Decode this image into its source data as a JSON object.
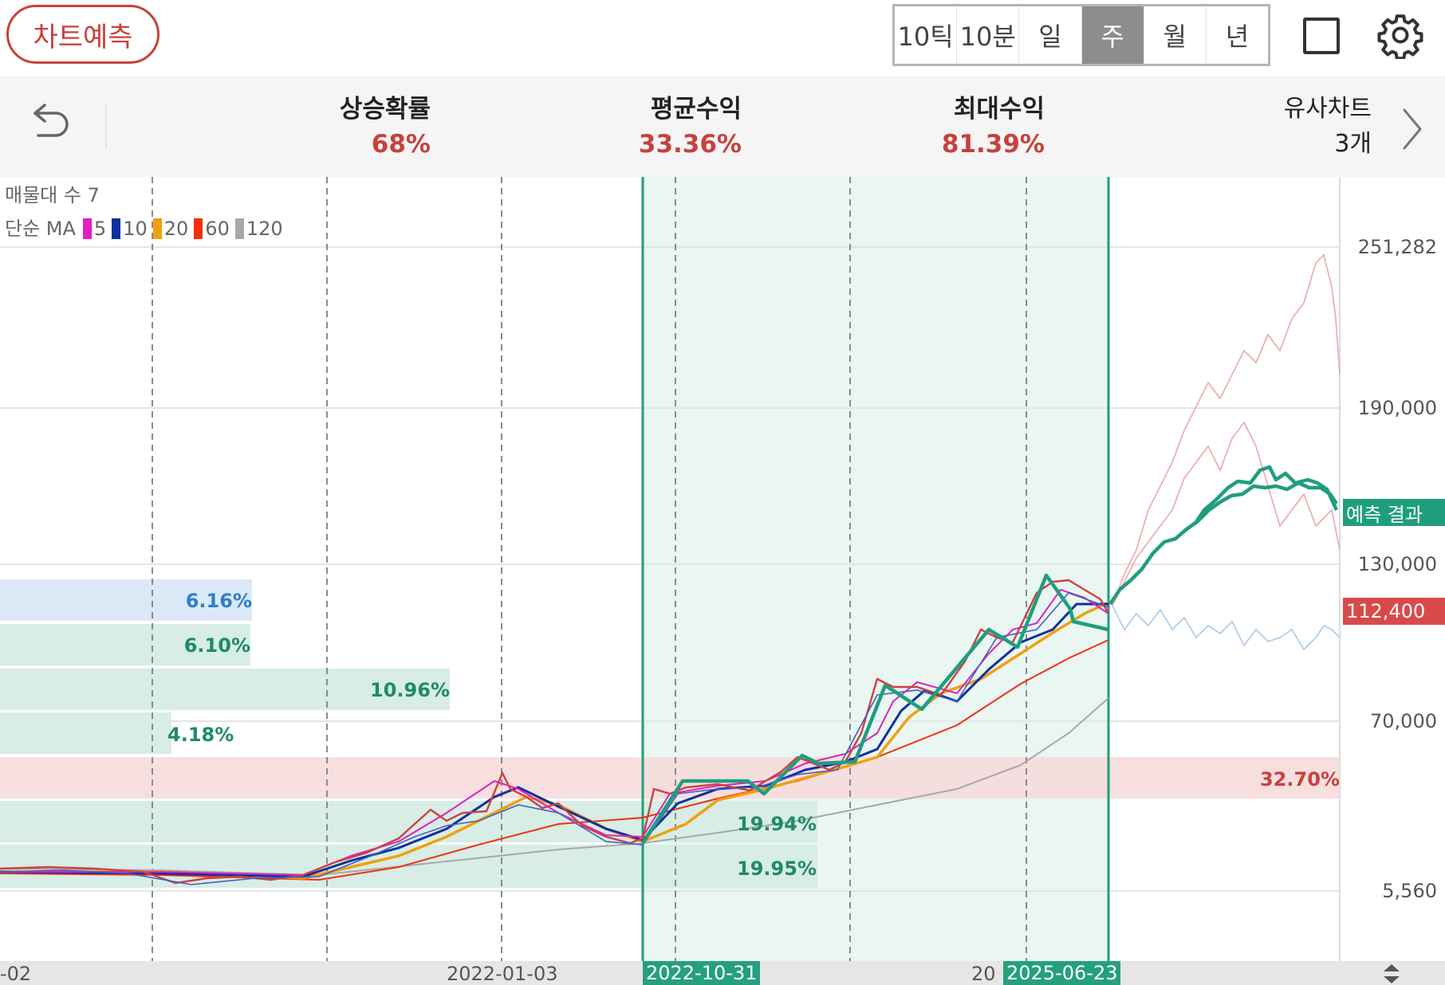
{
  "toolbar": {
    "predict_label": "차트예측",
    "periods": [
      "10틱",
      "10분",
      "일",
      "주",
      "월",
      "년"
    ],
    "active_period": "주"
  },
  "stats": {
    "rise_prob_label": "상승확률",
    "rise_prob_value": "68%",
    "avg_return_label": "평균수익",
    "avg_return_value": "33.36%",
    "max_return_label": "최대수익",
    "max_return_value": "81.39%",
    "similar_label": "유사차트",
    "similar_value": "3개"
  },
  "legend": {
    "volume_profile": "매물대 수 7",
    "ma_label": "단순 MA",
    "ma_periods": [
      "5",
      "10",
      "20",
      "60",
      "120"
    ],
    "ma_colors": [
      "#e020c0",
      "#1030a0",
      "#f0a010",
      "#f03010",
      "#a8a8a8"
    ]
  },
  "price_axis": {
    "ticks": [
      "251,282",
      "190,000",
      "130,000",
      "70,000",
      "5,560"
    ],
    "forecast_tag": "예측 결과",
    "current_price": "112,400"
  },
  "volume_profile": {
    "bars": [
      "6.16%",
      "6.10%",
      "10.96%",
      "4.18%",
      "32.70%",
      "19.94%",
      "19.95%"
    ]
  },
  "date_axis": {
    "left_cut": "-02",
    "label_1": "2022-01-03",
    "range_start": "2022-10-31",
    "partial": "20",
    "range_end": "2025-06-23"
  },
  "colors": {
    "accent_red": "#c8403c",
    "forecast_green": "#1f9e7e",
    "range_fill": "#e9f6f2"
  }
}
